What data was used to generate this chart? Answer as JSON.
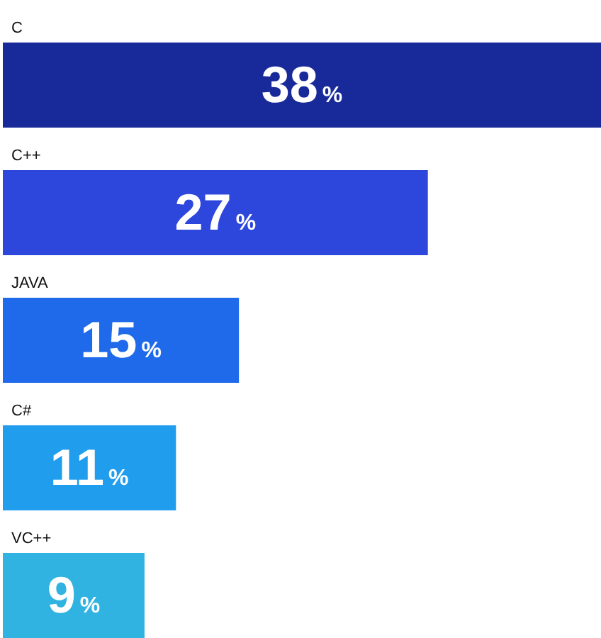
{
  "chart_data": {
    "type": "bar",
    "orientation": "horizontal",
    "categories": [
      "C",
      "C++",
      "JAVA",
      "C#",
      "VC++"
    ],
    "values": [
      38,
      27,
      15,
      11,
      9
    ],
    "colors": [
      "#182a9a",
      "#2d46dc",
      "#1f6aea",
      "#209ded",
      "#30b3e0"
    ],
    "value_labels": [
      "38%",
      "27%",
      "15%",
      "11%",
      "9%"
    ]
  }
}
